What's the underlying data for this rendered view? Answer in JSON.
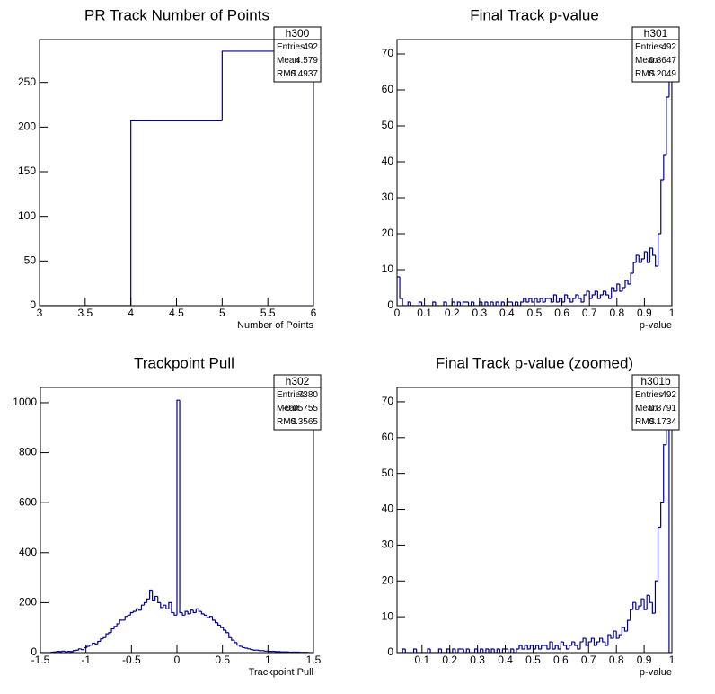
{
  "chart_data": [
    {
      "type": "histogram",
      "title": "PR Track Number of Points",
      "x_label": "Number of Points",
      "bins": [
        3,
        4,
        5,
        6
      ],
      "counts": [
        0,
        207,
        285
      ],
      "color": "#000099",
      "xlim": [
        3,
        6
      ],
      "xticks": [
        3,
        3.5,
        4,
        4.5,
        5,
        5.5,
        6
      ],
      "ylim": [
        0,
        298
      ],
      "yticks": [
        0,
        50,
        100,
        150,
        200,
        250
      ],
      "grid": false,
      "stats": {
        "name": "h300",
        "rows": [
          {
            "label": "Entries",
            "value": 492
          },
          {
            "label": "Mean",
            "value": 4.579
          },
          {
            "label": "RMS",
            "value": 0.4937
          }
        ]
      }
    },
    {
      "type": "histogram",
      "title": "Final Track p-value",
      "x_label": "p-value",
      "bins": [
        0,
        0.01,
        0.02,
        0.03,
        0.04,
        0.05,
        0.06,
        0.07,
        0.08,
        0.09,
        0.1,
        0.11,
        0.12,
        0.13,
        0.14,
        0.15,
        0.16,
        0.17,
        0.18,
        0.19,
        0.2,
        0.21,
        0.22,
        0.23,
        0.24,
        0.25,
        0.26,
        0.27,
        0.28,
        0.29,
        0.3,
        0.31,
        0.32,
        0.33,
        0.34,
        0.35,
        0.36,
        0.37,
        0.38,
        0.39,
        0.4,
        0.41,
        0.42,
        0.43,
        0.44,
        0.45,
        0.46,
        0.47,
        0.48,
        0.49,
        0.5,
        0.51,
        0.52,
        0.53,
        0.54,
        0.55,
        0.56,
        0.57,
        0.58,
        0.59,
        0.6,
        0.61,
        0.62,
        0.63,
        0.64,
        0.65,
        0.66,
        0.67,
        0.68,
        0.69,
        0.7,
        0.71,
        0.72,
        0.73,
        0.74,
        0.75,
        0.76,
        0.77,
        0.78,
        0.79,
        0.8,
        0.81,
        0.82,
        0.83,
        0.84,
        0.85,
        0.86,
        0.87,
        0.88,
        0.89,
        0.9,
        0.91,
        0.92,
        0.93,
        0.94,
        0.95,
        0.96,
        0.97,
        0.98,
        0.99,
        1
      ],
      "counts": [
        8,
        2,
        0,
        0,
        1,
        0,
        0,
        0,
        1,
        0,
        0,
        0,
        0,
        1,
        0,
        0,
        0,
        1,
        0,
        0,
        1,
        0,
        1,
        0,
        1,
        1,
        0,
        1,
        0,
        0,
        1,
        0,
        1,
        0,
        1,
        0,
        1,
        0,
        1,
        0,
        1,
        1,
        0,
        1,
        0,
        1,
        2,
        1,
        2,
        1,
        2,
        1,
        2,
        1,
        2,
        2,
        1,
        3,
        1,
        2,
        1,
        3,
        2,
        1,
        2,
        3,
        2,
        1,
        3,
        4,
        2,
        3,
        4,
        2,
        3,
        4,
        3,
        2,
        5,
        4,
        6,
        4,
        5,
        7,
        6,
        9,
        12,
        14,
        12,
        13,
        15,
        12,
        16,
        14,
        11,
        20,
        35,
        42,
        58,
        76
      ],
      "color": "#000099",
      "xlim": [
        0,
        1
      ],
      "xticks": [
        0,
        0.1,
        0.2,
        0.3,
        0.4,
        0.5,
        0.6,
        0.7,
        0.8,
        0.9,
        1
      ],
      "ylim": [
        0,
        74
      ],
      "yticks": [
        0,
        10,
        20,
        30,
        40,
        50,
        60,
        70
      ],
      "grid": false,
      "stats": {
        "name": "h301",
        "rows": [
          {
            "label": "Entries",
            "value": 492
          },
          {
            "label": "Mean",
            "value": 0.8647
          },
          {
            "label": "RMS",
            "value": 0.2049
          }
        ]
      }
    },
    {
      "type": "histogram",
      "title": "Trackpoint Pull",
      "x_label": "Trackpoint Pull",
      "bins": [
        -1.5,
        -1.47,
        -1.44,
        -1.41,
        -1.38,
        -1.35,
        -1.32,
        -1.29,
        -1.26,
        -1.23,
        -1.2,
        -1.17,
        -1.14,
        -1.11,
        -1.08,
        -1.05,
        -1.02,
        -0.99,
        -0.96,
        -0.93,
        -0.9,
        -0.87,
        -0.84,
        -0.81,
        -0.78,
        -0.75,
        -0.72,
        -0.69,
        -0.66,
        -0.63,
        -0.6,
        -0.57,
        -0.54,
        -0.51,
        -0.48,
        -0.45,
        -0.42,
        -0.39,
        -0.36,
        -0.33,
        -0.3,
        -0.27,
        -0.24,
        -0.21,
        -0.18,
        -0.15,
        -0.12,
        -0.09,
        -0.06,
        -0.03,
        0,
        0.03,
        0.06,
        0.09,
        0.12,
        0.15,
        0.18,
        0.21,
        0.24,
        0.27,
        0.3,
        0.33,
        0.36,
        0.39,
        0.42,
        0.45,
        0.48,
        0.51,
        0.54,
        0.57,
        0.6,
        0.63,
        0.66,
        0.69,
        0.72,
        0.75,
        0.78,
        0.81,
        0.84,
        0.87,
        0.9,
        0.93,
        0.96,
        0.99,
        1.02,
        1.05,
        1.08,
        1.11,
        1.14,
        1.17,
        1.2,
        1.23,
        1.26,
        1.29,
        1.32,
        1.35,
        1.38,
        1.41,
        1.44,
        1.47,
        1.5
      ],
      "counts": [
        0,
        0,
        0,
        0,
        2,
        3,
        5,
        4,
        6,
        3,
        5,
        4,
        8,
        10,
        15,
        12,
        20,
        25,
        30,
        38,
        35,
        45,
        55,
        60,
        75,
        80,
        95,
        105,
        115,
        130,
        130,
        145,
        150,
        160,
        165,
        175,
        170,
        190,
        200,
        215,
        250,
        210,
        225,
        200,
        180,
        190,
        175,
        200,
        160,
        150,
        1010,
        160,
        150,
        165,
        155,
        170,
        160,
        175,
        165,
        155,
        150,
        140,
        145,
        130,
        120,
        110,
        100,
        90,
        80,
        60,
        50,
        40,
        30,
        25,
        20,
        18,
        15,
        12,
        10,
        10,
        8,
        8,
        6,
        6,
        5,
        5,
        4,
        4,
        3,
        3,
        3,
        2,
        2,
        2,
        2,
        1,
        1,
        1,
        0,
        0
      ],
      "color": "#000099",
      "xlim": [
        -1.5,
        1.5
      ],
      "xticks": [
        -1.5,
        -1,
        -0.5,
        0,
        0.5,
        1,
        1.5
      ],
      "ylim": [
        0,
        1061
      ],
      "yticks": [
        0,
        200,
        400,
        600,
        800,
        1000
      ],
      "grid": false,
      "stats": {
        "name": "h302",
        "rows": [
          {
            "label": "Entries",
            "value": 7380
          },
          {
            "label": "Mean",
            "value": -0.05755
          },
          {
            "label": "RMS",
            "value": 0.3565
          }
        ]
      }
    },
    {
      "type": "histogram",
      "title": "Final Track p-value (zoomed)",
      "x_label": "p-value",
      "bins": [
        0.01,
        0.02,
        0.03,
        0.04,
        0.05,
        0.06,
        0.07,
        0.08,
        0.09,
        0.1,
        0.11,
        0.12,
        0.13,
        0.14,
        0.15,
        0.16,
        0.17,
        0.18,
        0.19,
        0.2,
        0.21,
        0.22,
        0.23,
        0.24,
        0.25,
        0.26,
        0.27,
        0.28,
        0.29,
        0.3,
        0.31,
        0.32,
        0.33,
        0.34,
        0.35,
        0.36,
        0.37,
        0.38,
        0.39,
        0.4,
        0.41,
        0.42,
        0.43,
        0.44,
        0.45,
        0.46,
        0.47,
        0.48,
        0.49,
        0.5,
        0.51,
        0.52,
        0.53,
        0.54,
        0.55,
        0.56,
        0.57,
        0.58,
        0.59,
        0.6,
        0.61,
        0.62,
        0.63,
        0.64,
        0.65,
        0.66,
        0.67,
        0.68,
        0.69,
        0.7,
        0.71,
        0.72,
        0.73,
        0.74,
        0.75,
        0.76,
        0.77,
        0.78,
        0.79,
        0.8,
        0.81,
        0.82,
        0.83,
        0.84,
        0.85,
        0.86,
        0.87,
        0.88,
        0.89,
        0.9,
        0.91,
        0.92,
        0.93,
        0.94,
        0.95,
        0.96,
        0.97,
        0.98,
        0.99,
        1
      ],
      "counts": [
        0,
        0,
        1,
        0,
        0,
        0,
        1,
        0,
        0,
        0,
        0,
        1,
        0,
        0,
        0,
        1,
        0,
        0,
        1,
        0,
        1,
        0,
        1,
        1,
        0,
        1,
        0,
        0,
        1,
        0,
        1,
        0,
        1,
        0,
        1,
        0,
        1,
        0,
        1,
        1,
        0,
        1,
        0,
        1,
        2,
        1,
        2,
        1,
        2,
        1,
        2,
        1,
        2,
        2,
        1,
        3,
        1,
        2,
        1,
        3,
        2,
        1,
        2,
        3,
        2,
        1,
        3,
        4,
        2,
        3,
        4,
        2,
        3,
        4,
        3,
        2,
        5,
        4,
        6,
        4,
        5,
        7,
        6,
        9,
        12,
        14,
        12,
        13,
        15,
        12,
        16,
        14,
        11,
        20,
        35,
        42,
        58,
        76,
        0
      ],
      "color": "#000099",
      "xlim": [
        0.01,
        1
      ],
      "xticks": [
        0.1,
        0.2,
        0.3,
        0.4,
        0.5,
        0.6,
        0.7,
        0.8,
        0.9,
        1
      ],
      "ylim": [
        0,
        74
      ],
      "yticks": [
        0,
        10,
        20,
        30,
        40,
        50,
        60,
        70
      ],
      "grid": false,
      "stats": {
        "name": "h301b",
        "rows": [
          {
            "label": "Entries",
            "value": 492
          },
          {
            "label": "Mean",
            "value": 0.8791
          },
          {
            "label": "RMS",
            "value": 0.1734
          }
        ]
      }
    }
  ]
}
